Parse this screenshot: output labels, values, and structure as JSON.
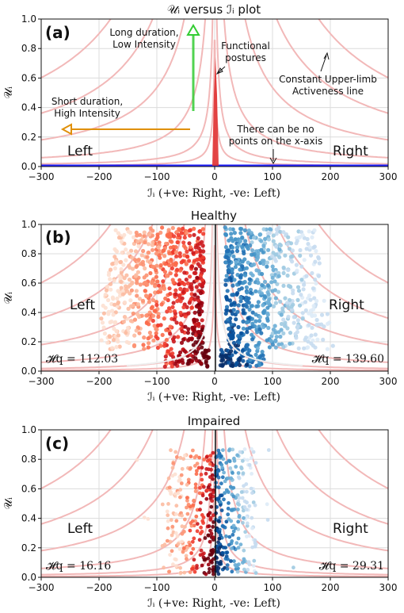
{
  "chart_data": [
    {
      "panel": "a",
      "type": "line",
      "title": "𝒰ᵢ versus ℐᵢ plot",
      "letter": "(a)",
      "xlabel": "ℐᵢ (+ve: Right, -ve: Left)",
      "ylabel": "𝒰ᵢ",
      "xlim": [
        -300,
        300
      ],
      "ylim": [
        0,
        1
      ],
      "xticks": [
        -300,
        -200,
        -100,
        0,
        100,
        200,
        300
      ],
      "yticks": [
        0.0,
        0.2,
        0.4,
        0.6,
        0.8,
        1.0
      ],
      "grid": true,
      "isoline_constants": [
        1,
        3,
        10,
        30,
        60,
        100
      ],
      "side_labels": {
        "left": "Left",
        "right": "Right"
      },
      "annotations": [
        {
          "text": [
            "Long duration,",
            "Low Intensity"
          ],
          "arrow": "green, pointing up"
        },
        {
          "text": [
            "Functional",
            "postures"
          ],
          "arrow": "black, pointing to x = 0"
        },
        {
          "text": [
            "Constant Upper-limb",
            "Activeness line"
          ],
          "arrow": "black, pointing to an isoline"
        },
        {
          "text": [
            "Short duration,",
            "High Intensity"
          ],
          "arrow": "orange, pointing left"
        },
        {
          "text": [
            "There can be no",
            "points on the x-axis"
          ],
          "arrow": "black, pointing down to x-axis"
        }
      ],
      "colors": {
        "isoline": "#f2b8b8",
        "x_axis_line": "#2222ff",
        "spike": "#e03030",
        "green_arrow": "#33cc33",
        "orange_arrow": "#e0900a"
      }
    },
    {
      "panel": "b",
      "type": "scatter",
      "title": "Healthy",
      "letter": "(b)",
      "xlabel": "ℐᵢ (+ve: Right, -ve: Left)",
      "ylabel": "𝒰ᵢ",
      "xlim": [
        -300,
        300
      ],
      "ylim": [
        0,
        1
      ],
      "xticks": [
        -300,
        -200,
        -100,
        0,
        100,
        200,
        300
      ],
      "yticks": [
        0.0,
        0.2,
        0.4,
        0.6,
        0.8,
        1.0
      ],
      "grid": true,
      "side_labels": {
        "left": "Left",
        "right": "Right"
      },
      "entropy": {
        "left": "𝓗q = 112.03",
        "right": "𝓗q = 139.60"
      },
      "colors": {
        "left": "#c0202a",
        "right": "#1a5fa8",
        "boundary_curve": "#e8e8e8"
      }
    },
    {
      "panel": "c",
      "type": "scatter",
      "title": "Impaired",
      "letter": "(c)",
      "xlabel": "ℐᵢ (+ve: Right, -ve: Left)",
      "ylabel": "𝒰ᵢ",
      "xlim": [
        -300,
        300
      ],
      "ylim": [
        0,
        1
      ],
      "xticks": [
        -300,
        -200,
        -100,
        0,
        100,
        200,
        300
      ],
      "yticks": [
        0.0,
        0.2,
        0.4,
        0.6,
        0.8,
        1.0
      ],
      "grid": true,
      "side_labels": {
        "left": "Left",
        "right": "Right"
      },
      "entropy": {
        "left": "𝓗q = 16.16",
        "right": "𝓗q = 29.31"
      },
      "colors": {
        "left": "#c0202a",
        "right": "#1a5fa8"
      }
    }
  ]
}
